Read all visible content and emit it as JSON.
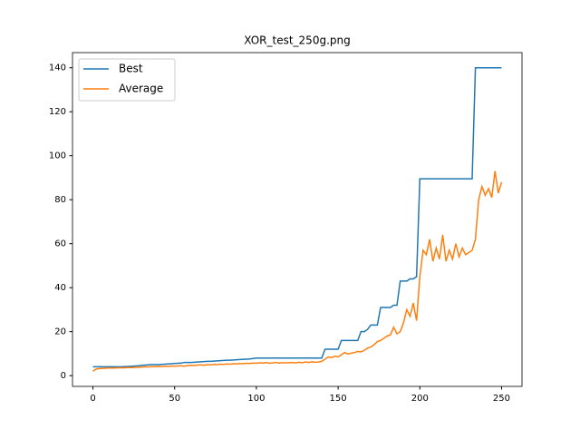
{
  "chart_data": {
    "type": "line",
    "title": "XOR_test_250g.png",
    "x": [
      0,
      2,
      4,
      6,
      8,
      10,
      12,
      14,
      16,
      18,
      20,
      22,
      24,
      26,
      28,
      30,
      32,
      34,
      36,
      38,
      40,
      42,
      44,
      46,
      48,
      50,
      52,
      54,
      56,
      58,
      60,
      62,
      64,
      66,
      68,
      70,
      72,
      74,
      76,
      78,
      80,
      82,
      84,
      86,
      88,
      90,
      92,
      94,
      96,
      98,
      100,
      102,
      104,
      106,
      108,
      110,
      112,
      114,
      116,
      118,
      120,
      122,
      124,
      126,
      128,
      130,
      132,
      134,
      136,
      138,
      140,
      142,
      144,
      146,
      148,
      150,
      152,
      154,
      156,
      158,
      160,
      162,
      164,
      166,
      168,
      170,
      172,
      174,
      176,
      178,
      180,
      182,
      184,
      186,
      188,
      190,
      192,
      194,
      196,
      198,
      200,
      202,
      204,
      206,
      208,
      210,
      212,
      214,
      216,
      218,
      220,
      222,
      224,
      226,
      228,
      230,
      232,
      234,
      236,
      238,
      240,
      242,
      244,
      246,
      248,
      250
    ],
    "series": [
      {
        "name": "Best",
        "color": "#1f77b4",
        "values": [
          4,
          4,
          4,
          4,
          4,
          4,
          4,
          4,
          4,
          4,
          4.1,
          4.2,
          4.3,
          4.4,
          4.5,
          4.7,
          4.8,
          4.9,
          5,
          5,
          5,
          5.1,
          5.2,
          5.3,
          5.4,
          5.5,
          5.6,
          5.7,
          6,
          6,
          6,
          6.1,
          6.2,
          6.3,
          6.4,
          6.5,
          6.5,
          6.6,
          6.7,
          6.8,
          6.9,
          7,
          7,
          7.1,
          7.2,
          7.3,
          7.4,
          7.5,
          7.6,
          7.8,
          8,
          8,
          8,
          8,
          8,
          8,
          8,
          8,
          8,
          8,
          8,
          8,
          8,
          8,
          8,
          8,
          8,
          8,
          8,
          8,
          8,
          12,
          12,
          12,
          12,
          12,
          16,
          16,
          16,
          16,
          16,
          16,
          20,
          20,
          21,
          23,
          23,
          23,
          31,
          31,
          31,
          31,
          32,
          32,
          43,
          43,
          43,
          44,
          44,
          45,
          89.5,
          89.5,
          89.5,
          89.5,
          89.5,
          89.5,
          89.5,
          89.5,
          89.5,
          89.5,
          89.5,
          89.5,
          89.5,
          89.5,
          89.5,
          89.5,
          89.5,
          140,
          140,
          140,
          140,
          140,
          140,
          140,
          140,
          140
        ]
      },
      {
        "name": "Average",
        "color": "#ff7f0e",
        "values": [
          2,
          3,
          3.2,
          3.3,
          3.4,
          3.5,
          3.4,
          3.5,
          3.6,
          3.5,
          3.6,
          3.7,
          3.6,
          3.8,
          3.7,
          3.9,
          4,
          3.9,
          4.1,
          4,
          4.2,
          4.1,
          4.3,
          4.2,
          4.4,
          4.3,
          4.4,
          4.5,
          4.3,
          4.6,
          4.7,
          4.6,
          4.8,
          4.9,
          4.7,
          5,
          4.9,
          5.1,
          5,
          5.2,
          5.1,
          5.3,
          5.2,
          5.4,
          5.3,
          5.5,
          5.4,
          5.6,
          5.5,
          5.7,
          5.6,
          5.8,
          5.7,
          5.9,
          5.6,
          5.8,
          6,
          5.7,
          5.9,
          5.8,
          5.9,
          6,
          5.8,
          6.1,
          5.9,
          6.2,
          6,
          6.3,
          6.1,
          6.2,
          6.5,
          7.5,
          8.5,
          8.2,
          8.8,
          8.5,
          9.5,
          10.5,
          9.8,
          10.2,
          10.5,
          11,
          10.8,
          11.5,
          12.5,
          13,
          14,
          15.5,
          16,
          17,
          18,
          18.5,
          22,
          19,
          20,
          24,
          30,
          27,
          33,
          25,
          45,
          57,
          55,
          62,
          52,
          58,
          53,
          64,
          52,
          57,
          53,
          60,
          54,
          58,
          55,
          56,
          57,
          62,
          80,
          86,
          82,
          85,
          81,
          93,
          83,
          88
        ]
      }
    ],
    "xlim": [
      -12.5,
      262.5
    ],
    "ylim": [
      -4.9,
      146.9
    ],
    "xticks": [
      0,
      50,
      100,
      150,
      200,
      250
    ],
    "yticks": [
      0,
      20,
      40,
      60,
      80,
      100,
      120,
      140
    ],
    "legend": "upper left"
  }
}
